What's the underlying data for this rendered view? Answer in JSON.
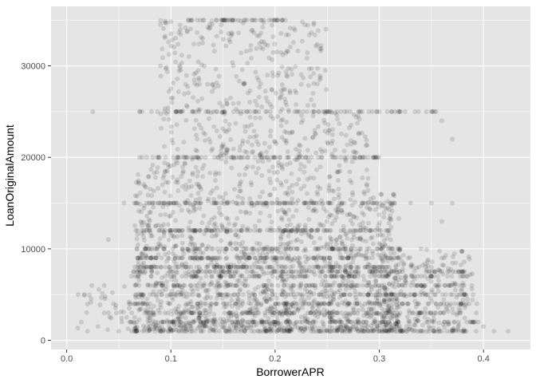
{
  "chart_data": {
    "type": "scatter",
    "xlabel": "BorrowerAPR",
    "ylabel": "LoanOriginalAmount",
    "xlim": [
      -0.015,
      0.445
    ],
    "ylim": [
      -1000,
      36500
    ],
    "x_ticks": [
      0.0,
      0.1,
      0.2,
      0.3,
      0.4
    ],
    "x_tick_labels": [
      "0.0",
      "0.1",
      "0.2",
      "0.3",
      "0.4"
    ],
    "y_ticks": [
      0,
      10000,
      20000,
      30000
    ],
    "y_tick_labels": [
      "0",
      "10000",
      "20000",
      "30000"
    ],
    "grid": true,
    "panel_background": "#e5e5e5",
    "grid_color": "#ffffff",
    "point_color": "#000000",
    "point_alpha": 0.12,
    "description_points": {
      "x_range": [
        0.0065,
        0.4236
      ],
      "y_range": [
        1000,
        35000
      ],
      "dense_rows_y": [
        1000,
        2000,
        3000,
        4000,
        5000,
        6000,
        7000,
        7500,
        8000,
        9000,
        10000,
        12000,
        15000,
        20000,
        25000,
        35000
      ],
      "sample_points": [
        [
          0.011,
          5000
        ],
        [
          0.014,
          2000
        ],
        [
          0.017,
          5000
        ],
        [
          0.02,
          1000
        ],
        [
          0.024,
          6000
        ],
        [
          0.025,
          25000
        ],
        [
          0.03,
          1500
        ],
        [
          0.036,
          3000
        ],
        [
          0.04,
          11000
        ],
        [
          0.045,
          4000
        ],
        [
          0.05,
          1000
        ],
        [
          0.055,
          15000
        ],
        [
          0.06,
          3500
        ],
        [
          0.065,
          15000
        ],
        [
          0.07,
          20000
        ],
        [
          0.07,
          25000
        ],
        [
          0.09,
          30000
        ],
        [
          0.1,
          33500
        ],
        [
          0.12,
          35000
        ],
        [
          0.15,
          35000
        ],
        [
          0.18,
          35000
        ],
        [
          0.2,
          35000
        ],
        [
          0.16,
          30000
        ],
        [
          0.14,
          28000
        ],
        [
          0.25,
          25000
        ],
        [
          0.3,
          25000
        ],
        [
          0.32,
          25000
        ],
        [
          0.35,
          25000
        ],
        [
          0.36,
          24000
        ],
        [
          0.37,
          22000
        ],
        [
          0.31,
          15000
        ],
        [
          0.33,
          15000
        ],
        [
          0.35,
          15000
        ],
        [
          0.37,
          15000
        ],
        [
          0.36,
          13000
        ],
        [
          0.32,
          10000
        ],
        [
          0.34,
          10000
        ],
        [
          0.36,
          9000
        ],
        [
          0.38,
          7500
        ],
        [
          0.39,
          5000
        ],
        [
          0.39,
          2000
        ],
        [
          0.4,
          1500
        ],
        [
          0.41,
          1000
        ],
        [
          0.4236,
          1000
        ]
      ]
    }
  }
}
